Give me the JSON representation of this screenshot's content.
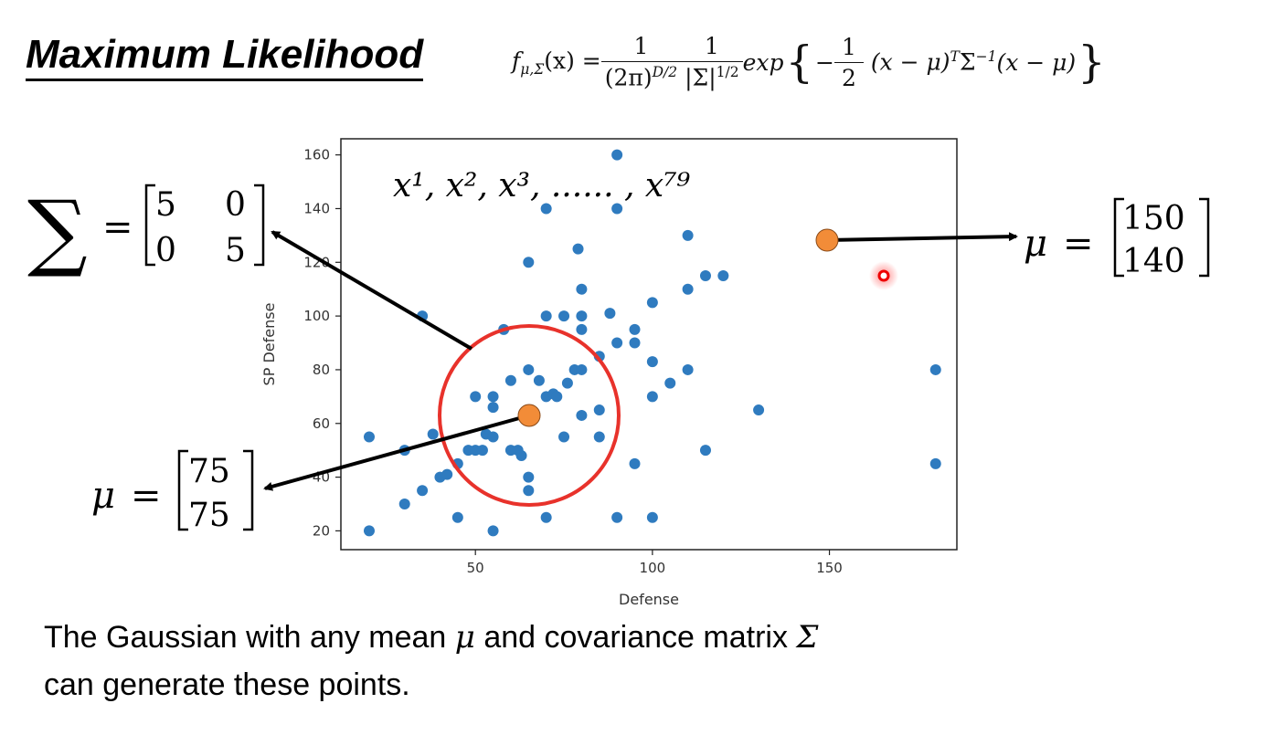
{
  "slide": {
    "title": "Maximum Likelihood",
    "formula": {
      "lhs": "f",
      "lhs_sub": "μ,Σ",
      "lhs_arg": "(x) =",
      "frac1_num": "1",
      "frac1_den": "(2π)",
      "frac1_den_sup": "D/2",
      "frac2_num": "1",
      "frac2_den": "|Σ|",
      "frac2_den_sup": "1/2",
      "exp_word": "exp",
      "brace_open": "{",
      "minus": "−",
      "frac3_num": "1",
      "frac3_den": "2",
      "quad_a": "(x − μ)",
      "quad_a_sup": "T",
      "sigma": "Σ",
      "sigma_sup": "−1",
      "quad_b": "(x − μ)",
      "brace_close": "}"
    },
    "caption_line1_a": "The Gaussian with any mean ",
    "caption_mu": "μ",
    "caption_line1_b": " and covariance matrix ",
    "caption_sigma": "Σ",
    "caption_line2": "can generate these points."
  },
  "annotations": {
    "sample_label": "x¹, x², x³, ...... , x⁷⁹",
    "sigma_symbol": "∑",
    "equals": "=",
    "sigma_matrix": [
      [
        "5",
        "0"
      ],
      [
        "0",
        "5"
      ]
    ],
    "mu_symbol": "μ",
    "mu_right_vector": [
      "150",
      "140"
    ],
    "mu_left_vector": [
      "75",
      "75"
    ]
  },
  "chart_data": {
    "type": "scatter",
    "title": "",
    "xlabel": "Defense",
    "ylabel": "SP Defense",
    "xlim": [
      12,
      186
    ],
    "ylim": [
      13,
      166
    ],
    "xticks": [
      50,
      100,
      150
    ],
    "yticks": [
      20,
      40,
      60,
      80,
      100,
      120,
      140,
      160
    ],
    "series": [
      {
        "name": "samples",
        "color": "#2f7bbf",
        "points": [
          [
            20,
            55
          ],
          [
            20,
            20
          ],
          [
            30,
            50
          ],
          [
            30,
            30
          ],
          [
            35,
            35
          ],
          [
            35,
            100
          ],
          [
            38,
            56
          ],
          [
            40,
            40
          ],
          [
            42,
            41
          ],
          [
            45,
            25
          ],
          [
            45,
            45
          ],
          [
            48,
            50
          ],
          [
            50,
            50
          ],
          [
            50,
            70
          ],
          [
            52,
            50
          ],
          [
            53,
            56
          ],
          [
            55,
            20
          ],
          [
            55,
            66
          ],
          [
            55,
            70
          ],
          [
            55,
            55
          ],
          [
            58,
            95
          ],
          [
            60,
            50
          ],
          [
            60,
            76
          ],
          [
            62,
            50
          ],
          [
            63,
            48
          ],
          [
            65,
            120
          ],
          [
            65,
            80
          ],
          [
            65,
            40
          ],
          [
            65,
            35
          ],
          [
            65,
            64
          ],
          [
            68,
            76
          ],
          [
            70,
            140
          ],
          [
            70,
            100
          ],
          [
            70,
            70
          ],
          [
            70,
            25
          ],
          [
            72,
            71
          ],
          [
            73,
            70
          ],
          [
            75,
            100
          ],
          [
            75,
            55
          ],
          [
            76,
            75
          ],
          [
            78,
            80
          ],
          [
            79,
            125
          ],
          [
            80,
            110
          ],
          [
            80,
            100
          ],
          [
            80,
            95
          ],
          [
            80,
            80
          ],
          [
            80,
            63
          ],
          [
            85,
            85
          ],
          [
            85,
            65
          ],
          [
            85,
            55
          ],
          [
            88,
            101
          ],
          [
            90,
            160
          ],
          [
            90,
            140
          ],
          [
            90,
            90
          ],
          [
            90,
            25
          ],
          [
            95,
            95
          ],
          [
            95,
            90
          ],
          [
            95,
            45
          ],
          [
            100,
            105
          ],
          [
            100,
            83
          ],
          [
            100,
            70
          ],
          [
            100,
            25
          ],
          [
            105,
            75
          ],
          [
            110,
            130
          ],
          [
            110,
            110
          ],
          [
            110,
            80
          ],
          [
            115,
            115
          ],
          [
            115,
            50
          ],
          [
            120,
            115
          ],
          [
            130,
            65
          ],
          [
            180,
            80
          ],
          [
            180,
            45
          ]
        ]
      }
    ],
    "highlight_points": [
      {
        "name": "mu-left",
        "x": 66,
        "y": 63,
        "color": "#f28c38"
      },
      {
        "name": "mu-right",
        "x": 151,
        "y": 129,
        "color": "#f28c38"
      }
    ],
    "circle_center": [
      66,
      63
    ],
    "cursor_point": [
      168,
      114
    ]
  }
}
